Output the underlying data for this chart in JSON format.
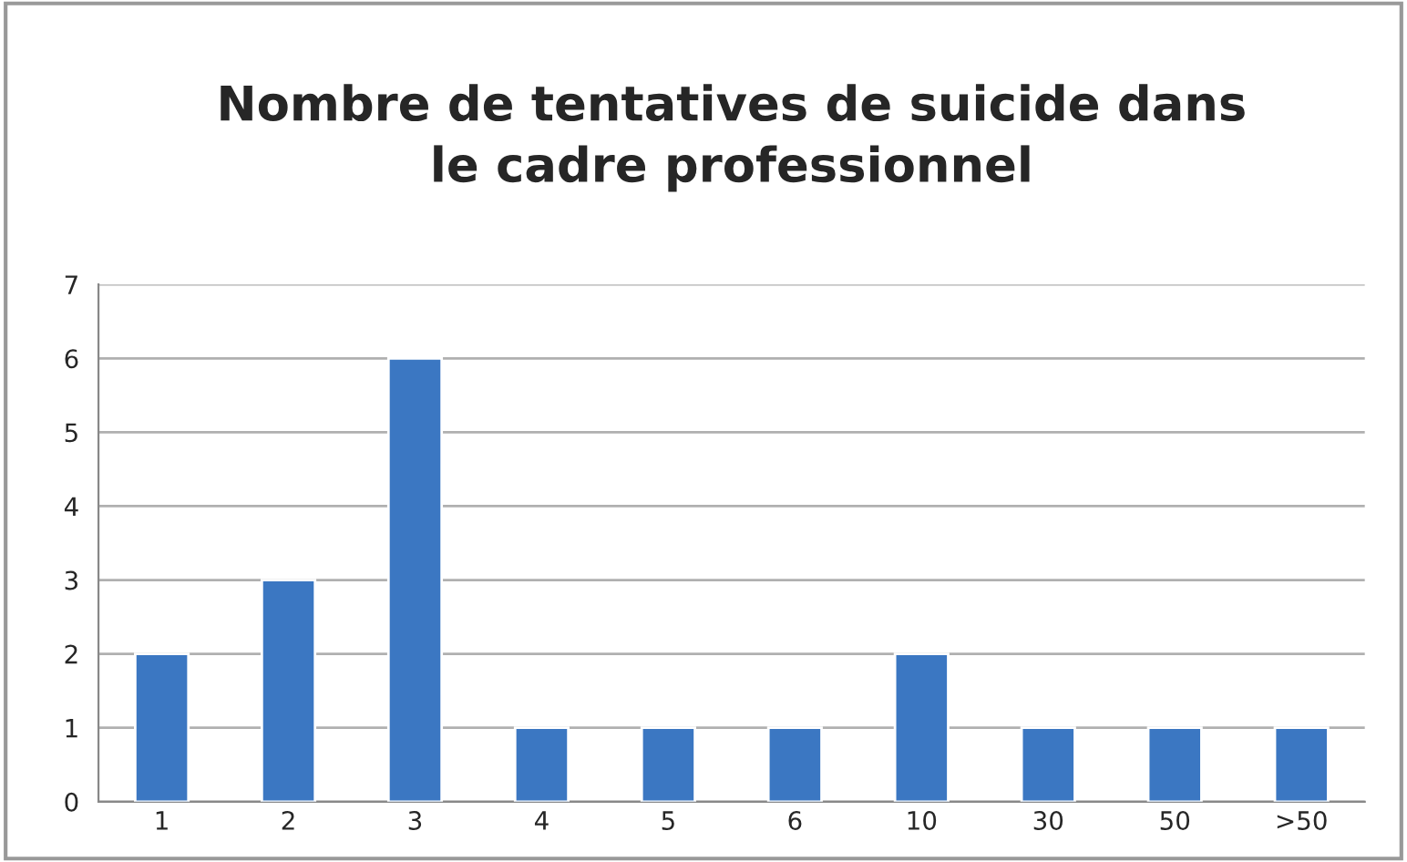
{
  "chart_data": {
    "type": "bar",
    "title": "Nombre de tentatives de suicide dans\nle cadre professionnel",
    "categories": [
      "1",
      "2",
      "3",
      "4",
      "5",
      "6",
      "10",
      "30",
      "50",
      ">50"
    ],
    "values": [
      2,
      3,
      6,
      1,
      1,
      1,
      2,
      1,
      1,
      1
    ],
    "color": "#3b77c2",
    "ylim": [
      0,
      7
    ],
    "yticks": [
      0,
      1,
      2,
      3,
      4,
      5,
      6,
      7
    ],
    "grid": "y",
    "legend": false
  }
}
